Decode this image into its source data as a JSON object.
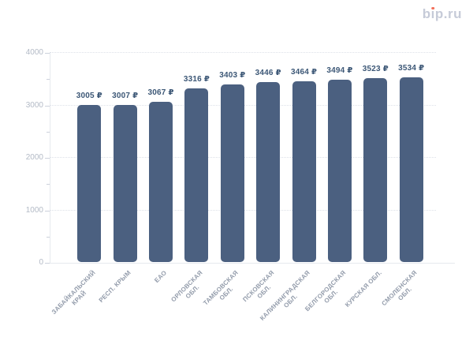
{
  "logo": {
    "prefix": "b",
    "i_glyph": "ı",
    "suffix": "p.ru",
    "text_color": "#c6cbd8",
    "dot_color": "#f3705a"
  },
  "chart_data": {
    "type": "bar",
    "title": "",
    "xlabel": "",
    "ylabel": "",
    "unit": "₽",
    "categories": [
      "ЗАБАЙКАЛЬСКИЙ\nКРАЙ",
      "РЕСП. КРЫМ",
      "ЕАО",
      "ОРЛОВСКАЯ\nОБЛ.",
      "ТАМБОВСКАЯ\nОБЛ.",
      "ПСКОВСКАЯ\nОБЛ.",
      "КАЛИНИНГРАДСКАЯ\nОБЛ.",
      "БЕЛГОРОДСКАЯ\nОБЛ.",
      "КУРСКАЯ ОБЛ.",
      "СМОЛЕНСКАЯ\nОБЛ."
    ],
    "values": [
      3005,
      3007,
      3067,
      3316,
      3403,
      3446,
      3464,
      3494,
      3523,
      3534
    ],
    "value_labels": [
      "3005 ₽",
      "3007 ₽",
      "3067 ₽",
      "3316 ₽",
      "3403 ₽",
      "3446 ₽",
      "3464 ₽",
      "3494 ₽",
      "3523 ₽",
      "3534 ₽"
    ],
    "ylim": [
      0,
      4000
    ],
    "yticks": [
      "0",
      "1000",
      "2000",
      "3000",
      "4000"
    ],
    "y_minor_step": 500,
    "grid": "horizontal dotted lines at major y ticks",
    "legend": "none",
    "colors": {
      "bar": "#4b6080",
      "value_label": "#3c5776",
      "y_tick_label": "#b3bac6",
      "x_tick_label": "#939cab",
      "grid_line": "#dde1e8",
      "axis_line": "#e6e9ee",
      "tick_mark": "#ccd1db",
      "background": "#ffffff"
    }
  }
}
